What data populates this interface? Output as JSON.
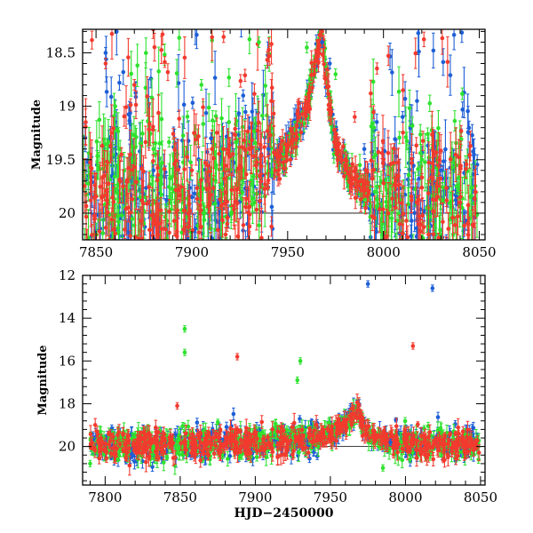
{
  "chart_data": [
    {
      "type": "scatter",
      "title": "",
      "xlabel": "",
      "ylabel": "Magnitude",
      "xlim": [
        7843,
        8053
      ],
      "ylim": [
        20.25,
        18.28
      ],
      "y_inverted": true,
      "xticks": [
        7850,
        7900,
        7950,
        8000,
        8050
      ],
      "xtick_labels": [
        "7850",
        "7900",
        "7950",
        "8000",
        "8050"
      ],
      "yticks": [
        18.5,
        19,
        19.5,
        20
      ],
      "ytick_labels": [
        "18.5",
        "19",
        "19.5",
        "20"
      ],
      "grid": false,
      "error_bars": true,
      "series_colors": [
        "#1e5fd6",
        "#2ee22e",
        "#f23a2e"
      ],
      "x_range": [
        7843,
        8049
      ],
      "peak": {
        "x": 7968,
        "y": 18.3
      },
      "baseline_mag": 19.95,
      "series": [
        {
          "color": "#2ee22e",
          "points_sample": [
            [
              7860,
              19.0
            ],
            [
              7880,
              19.4
            ],
            [
              7905,
              18.8
            ],
            [
              7935,
              18.4
            ],
            [
              7960,
              18.45
            ],
            [
              7975,
              18.7
            ],
            [
              7995,
              19.2
            ],
            [
              8020,
              19.5
            ]
          ]
        },
        {
          "color": "#1e5fd6",
          "points_sample": [
            [
              7855,
              18.5
            ],
            [
              7880,
              19.6
            ],
            [
              7910,
              19.3
            ],
            [
              7940,
              19.4
            ],
            [
              7968,
              18.4
            ],
            [
              7972,
              18.6
            ],
            [
              7990,
              19.4
            ],
            [
              8010,
              19.1
            ],
            [
              8030,
              19.6
            ]
          ]
        },
        {
          "color": "#f23a2e",
          "points_sample": [
            [
              7855,
              18.6
            ],
            [
              7870,
              18.8
            ],
            [
              7900,
              19.6
            ],
            [
              7930,
              19.4
            ],
            [
              7968,
              18.3
            ],
            [
              7985,
              19.1
            ],
            [
              8000,
              19.5
            ],
            [
              8040,
              19.9
            ]
          ]
        }
      ]
    },
    {
      "type": "scatter",
      "title": "",
      "xlabel": "HJD−2450000",
      "ylabel": "Magnitude",
      "xlim": [
        7785,
        8053
      ],
      "ylim": [
        21.8,
        12.0
      ],
      "y_inverted": true,
      "xticks": [
        7800,
        7850,
        7900,
        7950,
        8000,
        8050
      ],
      "xtick_labels": [
        "7800",
        "7850",
        "7900",
        "7950",
        "8000",
        "8050"
      ],
      "yticks": [
        12,
        14,
        16,
        18,
        20
      ],
      "ytick_labels": [
        "12",
        "14",
        "16",
        "18",
        "20"
      ],
      "grid": false,
      "error_bars": true,
      "series_colors": [
        "#1e5fd6",
        "#2ee22e",
        "#f23a2e"
      ],
      "x_range": [
        7790,
        8049
      ],
      "peak": {
        "x": 7968,
        "y": 18.3
      },
      "baseline_mag": 19.95,
      "series": [
        {
          "color": "#1e5fd6",
          "points_sample": [
            [
              7975,
              12.4
            ],
            [
              8018,
              12.6
            ],
            [
              7968,
              18.3
            ],
            [
              7990,
              19.8
            ]
          ]
        },
        {
          "color": "#2ee22e",
          "points_sample": [
            [
              7790,
              20.8
            ],
            [
              7853,
              14.5
            ],
            [
              7853,
              15.6
            ],
            [
              7930,
              16.0
            ],
            [
              7928,
              16.9
            ],
            [
              7985,
              21.0
            ],
            [
              8003,
              20.6
            ]
          ]
        },
        {
          "color": "#f23a2e",
          "points_sample": [
            [
              7888,
              15.8
            ],
            [
              8005,
              15.3
            ],
            [
              7848,
              18.1
            ],
            [
              7968,
              18.3
            ],
            [
              8010,
              19.9
            ]
          ]
        }
      ]
    }
  ]
}
